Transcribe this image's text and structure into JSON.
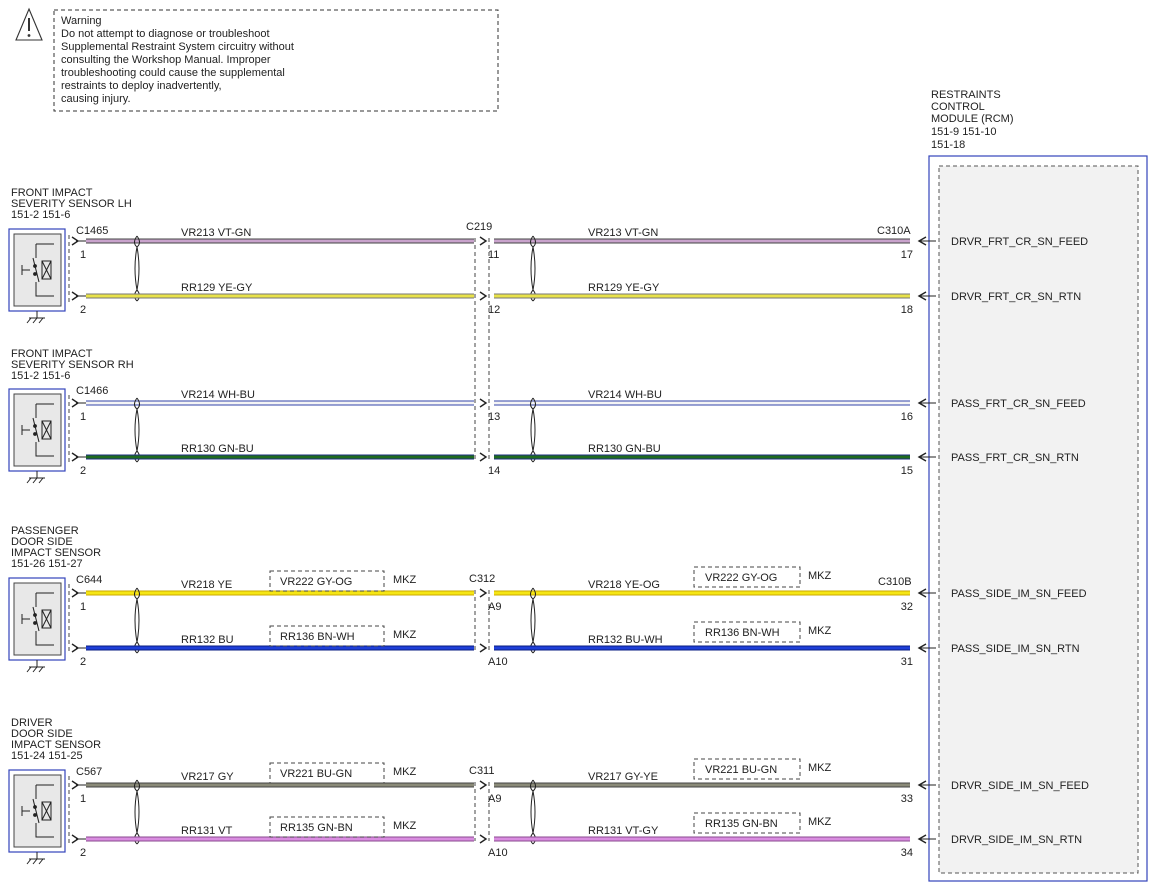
{
  "warning": {
    "lines": [
      "Warning",
      "Do not attempt to diagnose or troubleshoot",
      "Supplemental Restraint System circuitry without",
      "consulting the Workshop Manual. Improper",
      "troubleshooting could cause the supplemental",
      "restraints to deploy inadvertently,",
      "causing injury."
    ]
  },
  "rcm": {
    "title_lines": [
      "RESTRAINTS",
      "CONTROL",
      "MODULE (RCM)",
      "151-9    151-10",
      "151-18"
    ],
    "connector_a": "C310A",
    "connector_b": "C310B"
  },
  "inline": {
    "c219": "C219",
    "c312": "C312",
    "c311": "C311"
  },
  "sensors": [
    {
      "title_lines": [
        "FRONT IMPACT",
        "SEVERITY SENSOR LH",
        "151-2   151-6"
      ],
      "connector": "C1465"
    },
    {
      "title_lines": [
        "FRONT IMPACT",
        "SEVERITY SENSOR RH",
        "151-2   151-6"
      ],
      "connector": "C1466"
    },
    {
      "title_lines": [
        "PASSENGER",
        "DOOR SIDE",
        "IMPACT SENSOR",
        "151-26  151-27"
      ],
      "connector": "C644"
    },
    {
      "title_lines": [
        "DRIVER",
        "DOOR SIDE",
        "IMPACT SENSOR",
        "151-24  151-25"
      ],
      "connector": "C567"
    }
  ],
  "wires": [
    {
      "sensor_pin": "1",
      "inline_pin": "11",
      "rcm_pin": "17",
      "left_label": "VR213   VT-GN",
      "right_label": "VR213   VT-GN",
      "signal": "DRVR_FRT_CR_SN_FEED",
      "color": "#c9a3cc",
      "edge": "#444444",
      "alt_left": "",
      "alt_right": "",
      "alt_suffix": ""
    },
    {
      "sensor_pin": "2",
      "inline_pin": "12",
      "rcm_pin": "18",
      "left_label": "RR129   YE-GY",
      "right_label": "RR129   YE-GY",
      "signal": "DRVR_FRT_CR_SN_RTN",
      "color": "#e8e24a",
      "edge": "#777777",
      "alt_left": "",
      "alt_right": "",
      "alt_suffix": ""
    },
    {
      "sensor_pin": "1",
      "inline_pin": "13",
      "rcm_pin": "16",
      "left_label": "VR214   WH-BU",
      "right_label": "VR214   WH-BU",
      "signal": "PASS_FRT_CR_SN_FEED",
      "color": "#f4f4f4",
      "edge": "#3344aa",
      "alt_left": "",
      "alt_right": "",
      "alt_suffix": ""
    },
    {
      "sensor_pin": "2",
      "inline_pin": "14",
      "rcm_pin": "15",
      "left_label": "RR130   GN-BU",
      "right_label": "RR130   GN-BU",
      "signal": "PASS_FRT_CR_SN_RTN",
      "color": "#1f6b1f",
      "edge": "#1e2f80",
      "alt_left": "",
      "alt_right": "",
      "alt_suffix": ""
    },
    {
      "sensor_pin": "1",
      "inline_pin": "A9",
      "rcm_pin": "32",
      "left_label": "VR218   YE",
      "right_label": "VR218   YE-OG",
      "signal": "PASS_SIDE_IM_SN_FEED",
      "color": "#f5e614",
      "edge": "#caa800",
      "alt_left": "VR222   GY-OG",
      "alt_right": "VR222   GY-OG",
      "alt_suffix": "MKZ"
    },
    {
      "sensor_pin": "2",
      "inline_pin": "A10",
      "rcm_pin": "31",
      "left_label": "RR132   BU",
      "right_label": "RR132   BU-WH",
      "signal": "PASS_SIDE_IM_SN_RTN",
      "color": "#1e3fd8",
      "edge": "#0a1d80",
      "alt_left": "RR136   BN-WH",
      "alt_right": "RR136   BN-WH",
      "alt_suffix": "MKZ"
    },
    {
      "sensor_pin": "1",
      "inline_pin": "A9",
      "rcm_pin": "33",
      "left_label": "VR217   GY",
      "right_label": "VR217   GY-YE",
      "signal": "DRVR_SIDE_IM_SN_FEED",
      "color": "#8a8a78",
      "edge": "#444444",
      "alt_left": "VR221   BU-GN",
      "alt_right": "VR221   BU-GN",
      "alt_suffix": "MKZ"
    },
    {
      "sensor_pin": "2",
      "inline_pin": "A10",
      "rcm_pin": "34",
      "left_label": "RR131   VT",
      "right_label": "RR131   VT-GY",
      "signal": "DRVR_SIDE_IM_SN_RTN",
      "color": "#d98ce0",
      "edge": "#8a4a8f",
      "alt_left": "RR135   GN-BN",
      "alt_right": "RR135   GN-BN",
      "alt_suffix": "MKZ"
    }
  ]
}
